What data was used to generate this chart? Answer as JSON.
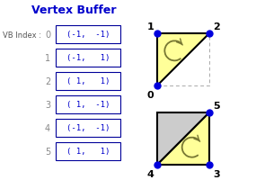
{
  "title": "Vertex Buffer",
  "title_color": "#0000cc",
  "title_fontsize": 9,
  "vb_label": "VB Index :",
  "indices": [
    "0",
    "1",
    "2",
    "3",
    "4",
    "5"
  ],
  "coords": [
    "(-1,  -1)",
    "(-1,   1)",
    "( 1,   1)",
    "( 1,  -1)",
    "(-1,  -1)",
    "( 1,   1)"
  ],
  "box_color": "#000099",
  "text_color": "#0000cc",
  "index_color": "#888888",
  "tri1_fill": "#ffff99",
  "tri2_fill": "#ffff99",
  "gray_fill": "#cccccc",
  "dot_color": "#0000dd",
  "arrow_color": "#777733",
  "bg_color": "#ffffff"
}
